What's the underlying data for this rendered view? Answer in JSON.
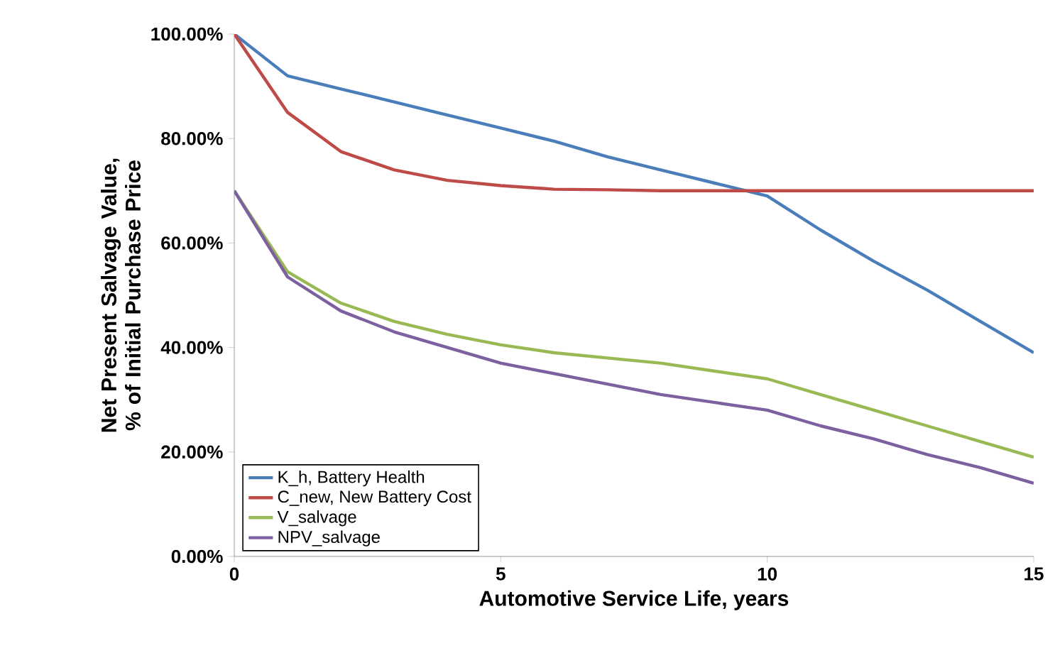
{
  "chart_data": {
    "type": "line",
    "xlabel": "Automotive Service Life, years",
    "ylabel": "Net Present Salvage Value, % of Initial Purchase Price",
    "x": [
      0,
      1,
      2,
      3,
      4,
      5,
      6,
      7,
      8,
      9,
      10,
      11,
      12,
      13,
      14,
      15
    ],
    "series": [
      {
        "name": "K_h, Battery Health",
        "color": "#4a7ebb",
        "values": [
          100,
          92,
          89.5,
          87,
          84.5,
          82,
          79.5,
          76.5,
          74,
          71.5,
          69,
          62.5,
          56.5,
          51,
          45,
          39
        ]
      },
      {
        "name": "C_new, New Battery Cost",
        "color": "#be4b48",
        "values": [
          100,
          85,
          77.5,
          74,
          72,
          71,
          70.3,
          70.2,
          70,
          70,
          70,
          70,
          70,
          70,
          70,
          70
        ]
      },
      {
        "name": "V_salvage",
        "color": "#98b954",
        "values": [
          70,
          54.5,
          48.5,
          45,
          42.5,
          40.5,
          39,
          38,
          37,
          35.5,
          34,
          31,
          28,
          25,
          22,
          19
        ]
      },
      {
        "name": "NPV_salvage",
        "color": "#7d60a0",
        "values": [
          70,
          53.5,
          47,
          43,
          40,
          37,
          35,
          33,
          31,
          29.5,
          28,
          25,
          22.5,
          19.5,
          17,
          14
        ]
      }
    ],
    "xlim": [
      0,
      15
    ],
    "ylim": [
      0,
      100
    ],
    "xticks": [
      0,
      5,
      10,
      15
    ],
    "yticks": [
      {
        "value": 0,
        "label": "0.00%"
      },
      {
        "value": 20,
        "label": "20.00%"
      },
      {
        "value": 40,
        "label": "40.00%"
      },
      {
        "value": 60,
        "label": "60.00%"
      },
      {
        "value": 80,
        "label": "80.00%"
      },
      {
        "value": 100,
        "label": "100.00%"
      }
    ],
    "legend": "bottom left",
    "grid": false,
    "marker": "none",
    "line_style": "solid"
  }
}
